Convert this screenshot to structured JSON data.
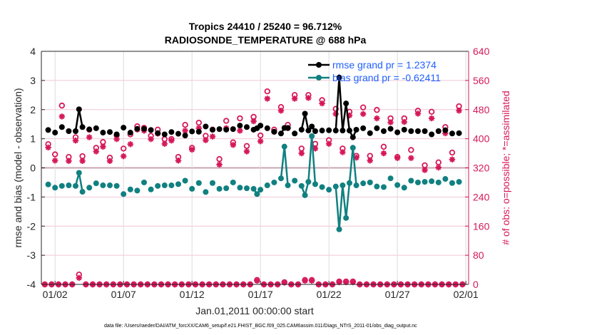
{
  "chart_data": {
    "type": "line",
    "title": [
      "Tropics 24410 / 25240 = 96.712%",
      "RADIOSONDE_TEMPERATURE @ 688 hPa"
    ],
    "xlabel": "Jan.01,2011 00:00:00 start",
    "ylabel": "rmse and bias (model - observation)",
    "ylabel_right": "# of obs: o=possible; *=assimilated",
    "xlim_days": [
      1,
      32.2
    ],
    "ylim": [
      -4,
      4
    ],
    "ylim_right": [
      0,
      640
    ],
    "x_ticks": [
      {
        "day": 2,
        "label": "01/02"
      },
      {
        "day": 7,
        "label": "01/07"
      },
      {
        "day": 12,
        "label": "01/12"
      },
      {
        "day": 17,
        "label": "01/17"
      },
      {
        "day": 22,
        "label": "01/22"
      },
      {
        "day": 27,
        "label": "01/27"
      },
      {
        "day": 32,
        "label": "02/01"
      }
    ],
    "y_ticks": [
      "-4",
      "-3",
      "-2",
      "-1",
      "0",
      "1",
      "2",
      "3",
      "4"
    ],
    "y_ticks_right": [
      "0",
      "80",
      "160",
      "240",
      "320",
      "400",
      "480",
      "560",
      "640"
    ],
    "grid": true,
    "legend": {
      "position": "top-right",
      "entries": [
        "rmse grand pr = 1.2374",
        "bias grand pr = -0.62411"
      ]
    },
    "footer": "data file: /Users/raeder/DAI/ATM_forcXX/CAM6_setup/f.e21.FHIST_BGC.f09_025.CAM6assim.011/Diags_NTrS_2011-01/obs_diag_output.nc",
    "colors": {
      "rmse": "#000000",
      "bias": "#118080",
      "counts": "#d6185a",
      "legend_text": "#1f5fff"
    },
    "time_sampling": {
      "main_start_day": 1.5,
      "off_start_day": 1.25,
      "step_days": 0.5
    },
    "main": {
      "rmse": [
        1.3,
        1.21,
        1.4,
        1.26,
        1.26,
        1.4,
        1.32,
        1.36,
        1.21,
        1.23,
        1.15,
        1.38,
        1.21,
        1.34,
        1.34,
        1.3,
        1.19,
        1.15,
        1.23,
        1.17,
        1.11,
        1.25,
        1.24,
        1.42,
        1.31,
        1.33,
        1.31,
        1.33,
        1.45,
        1.4,
        1.31,
        1.45,
        1.36,
        1.24,
        1.18,
        1.37,
        1.18,
        1.31,
        1.28,
        1.26,
        1.28,
        1.29,
        1.28,
        1.28,
        1.28,
        1.31,
        1.36,
        1.19,
        1.36,
        1.26,
        1.34,
        1.22,
        1.31,
        1.26,
        1.26,
        1.26,
        1.15,
        1.26,
        1.29,
        1.18,
        1.19
      ],
      "bias": [
        -0.57,
        -0.68,
        -0.62,
        -0.6,
        -0.62,
        -0.82,
        -0.68,
        -0.53,
        -0.6,
        -0.6,
        -0.62,
        -0.9,
        -0.74,
        -0.78,
        -0.5,
        -0.74,
        -0.62,
        -0.6,
        -0.6,
        -0.56,
        -0.44,
        -0.72,
        -0.52,
        -0.83,
        -0.52,
        -0.72,
        -0.7,
        -0.5,
        -0.68,
        -0.7,
        -0.72,
        -0.75,
        -0.6,
        -0.5,
        -0.36,
        -0.6,
        -0.44,
        -0.62,
        -0.48,
        -0.56,
        -0.66,
        -0.75,
        -0.64,
        -0.6,
        -0.52,
        -0.6,
        -0.53,
        -0.5,
        -0.64,
        -0.66,
        -0.36,
        -0.59,
        -0.68,
        -0.44,
        -0.5,
        -0.48,
        -0.46,
        -0.5,
        -0.38,
        -0.52,
        -0.48
      ],
      "possible": [
        385,
        357,
        491,
        350,
        404,
        352,
        425,
        375,
        391,
        348,
        409,
        373,
        412,
        434,
        430,
        408,
        425,
        399,
        399,
        350,
        438,
        375,
        444,
        408,
        425,
        344,
        449,
        390,
        456,
        380,
        460,
        409,
        530,
        425,
        487,
        438,
        520,
        373,
        520,
        386,
        506,
        396,
        482,
        373,
        474,
        353,
        486,
        353,
        479,
        378,
        456,
        350,
        456,
        369,
        477,
        327,
        474,
        335,
        432,
        362,
        489
      ],
      "assimilated": [
        376,
        340,
        461,
        339,
        395,
        339,
        404,
        365,
        378,
        339,
        399,
        352,
        385,
        425,
        422,
        399,
        414,
        386,
        395,
        340,
        422,
        370,
        429,
        396,
        406,
        329,
        429,
        383,
        422,
        365,
        448,
        393,
        510,
        419,
        477,
        429,
        510,
        360,
        512,
        373,
        497,
        386,
        468,
        363,
        464,
        348,
        468,
        340,
        456,
        360,
        445,
        347,
        446,
        347,
        469,
        314,
        456,
        321,
        415,
        343,
        477
      ]
    },
    "off_hour": {
      "rmse": [
        null,
        null,
        null,
        null,
        null,
        2.01,
        null,
        null,
        null,
        null,
        null,
        null,
        null,
        null,
        null,
        null,
        null,
        null,
        null,
        null,
        null,
        null,
        null,
        null,
        null,
        null,
        null,
        null,
        null,
        null,
        null,
        1.36,
        null,
        null,
        null,
        1.37,
        null,
        null,
        1.86,
        1.42,
        null,
        null,
        null,
        3.1,
        2.21,
        1.05,
        null,
        null,
        null,
        null,
        null,
        null,
        null,
        null,
        null,
        null,
        null,
        null,
        null,
        null,
        null,
        null
      ],
      "bias": [
        null,
        null,
        null,
        null,
        null,
        -0.17,
        null,
        null,
        null,
        null,
        null,
        null,
        null,
        null,
        null,
        null,
        null,
        null,
        null,
        null,
        null,
        null,
        null,
        null,
        null,
        null,
        null,
        null,
        null,
        null,
        null,
        -0.9,
        null,
        null,
        null,
        0.73,
        null,
        null,
        -0.94,
        1.09,
        null,
        null,
        null,
        -2.11,
        -1.72,
        0.69,
        null,
        null,
        null,
        null,
        null,
        null,
        null,
        null,
        null,
        null,
        null,
        null,
        null,
        null,
        null,
        null
      ],
      "possible": [
        0,
        0,
        0,
        0,
        0,
        27,
        0,
        0,
        0,
        0,
        0,
        0,
        0,
        0,
        0,
        0,
        0,
        0,
        0,
        0,
        0,
        0,
        0,
        0,
        0,
        0,
        0,
        0,
        0,
        0,
        0,
        12,
        0,
        0,
        0,
        6,
        0,
        0,
        12,
        12,
        0,
        0,
        0,
        8,
        8,
        8,
        0,
        0,
        0,
        0,
        0,
        0,
        0,
        0,
        0,
        0,
        0,
        0,
        0,
        0,
        0,
        0
      ],
      "assimilated": [
        0,
        0,
        0,
        0,
        0,
        18,
        0,
        0,
        0,
        0,
        0,
        0,
        0,
        0,
        0,
        0,
        0,
        0,
        0,
        0,
        0,
        0,
        0,
        0,
        0,
        0,
        0,
        0,
        0,
        0,
        0,
        10,
        0,
        0,
        0,
        5,
        0,
        0,
        10,
        10,
        0,
        0,
        0,
        6,
        6,
        6,
        0,
        0,
        0,
        0,
        0,
        0,
        0,
        0,
        0,
        0,
        0,
        0,
        0,
        0,
        0,
        0
      ]
    }
  }
}
